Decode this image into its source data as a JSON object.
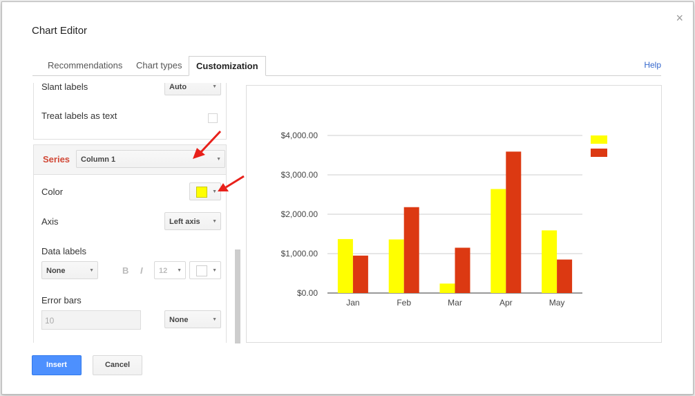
{
  "dialog": {
    "title": "Chart Editor",
    "close_glyph": "×",
    "help_label": "Help",
    "insert_label": "Insert",
    "cancel_label": "Cancel"
  },
  "tabs": [
    {
      "label": "Recommendations",
      "active": false
    },
    {
      "label": "Chart types",
      "active": false
    },
    {
      "label": "Customization",
      "active": true
    }
  ],
  "panel": {
    "slant_labels": {
      "label": "Slant labels",
      "value": "Auto"
    },
    "treat_labels": {
      "label": "Treat labels as text",
      "checked": false
    },
    "series": {
      "label": "Series",
      "value": "Column 1"
    },
    "color": {
      "label": "Color",
      "value": "#ffff00"
    },
    "axis": {
      "label": "Axis",
      "value": "Left axis"
    },
    "data_labels": {
      "label": "Data labels",
      "value": "None",
      "bold_glyph": "B",
      "italic_glyph": "I",
      "font_size": "12"
    },
    "error_bars": {
      "label": "Error bars",
      "input_value": "10",
      "value": "None"
    }
  },
  "icons": {
    "close": "close-icon",
    "dropdown": "chevron-down-icon",
    "annotation": "red-arrow-icon"
  },
  "colors": {
    "accent_red": "#d14836",
    "blue_button": "#4d90fe",
    "series1": "#ffff00",
    "series2": "#dc3912"
  },
  "chart_data": {
    "type": "bar",
    "categories": [
      "Jan",
      "Feb",
      "Mar",
      "Apr",
      "May"
    ],
    "series": [
      {
        "color": "#ffff00",
        "values": [
          1370,
          1360,
          240,
          2640,
          1590
        ]
      },
      {
        "color": "#dc3912",
        "values": [
          950,
          2180,
          1150,
          3590,
          850
        ]
      }
    ],
    "yticks": [
      "$0.00",
      "$1,000.00",
      "$2,000.00",
      "$3,000.00",
      "$4,000.00"
    ],
    "ylim": [
      0,
      4000
    ],
    "grid": true,
    "legend": "right"
  }
}
